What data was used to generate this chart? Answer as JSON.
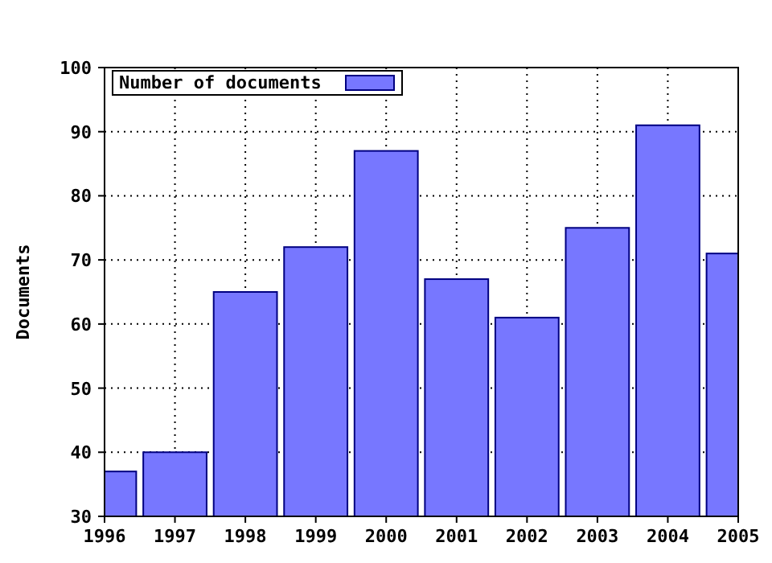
{
  "chart_data": {
    "type": "bar",
    "ylabel": "Documents",
    "x": [
      1996,
      1997,
      1998,
      1999,
      2000,
      2001,
      2002,
      2003,
      2004,
      2005
    ],
    "series": [
      {
        "name": "Number of documents",
        "color": "#7777ff",
        "values": [
          37,
          40,
          65,
          72,
          87,
          67,
          61,
          75,
          91,
          71
        ]
      }
    ],
    "xlim": [
      1996,
      2005
    ],
    "xticks": [
      1996,
      1997,
      1998,
      1999,
      2000,
      2001,
      2002,
      2003,
      2004,
      2005
    ],
    "ylim": [
      30,
      100
    ],
    "yticks": [
      30,
      40,
      50,
      60,
      70,
      80,
      90,
      100
    ],
    "grid": true,
    "legend": "top left"
  }
}
